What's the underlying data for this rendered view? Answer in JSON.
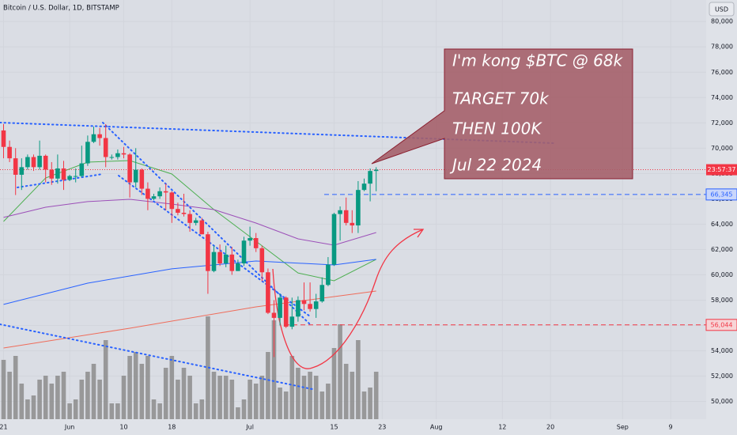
{
  "chart_data": {
    "type": "candlestick",
    "title": "Bitcoin / U.S. Dollar, 1D, BITSTAMP",
    "currency": "USD",
    "x": [
      "2024-05-21",
      "2024-05-22",
      "2024-05-23",
      "2024-05-24",
      "2024-05-25",
      "2024-05-26",
      "2024-05-27",
      "2024-05-28",
      "2024-05-29",
      "2024-05-30",
      "2024-05-31",
      "2024-06-01",
      "2024-06-02",
      "2024-06-03",
      "2024-06-04",
      "2024-06-05",
      "2024-06-06",
      "2024-06-07",
      "2024-06-08",
      "2024-06-09",
      "2024-06-10",
      "2024-06-11",
      "2024-06-12",
      "2024-06-13",
      "2024-06-14",
      "2024-06-15",
      "2024-06-16",
      "2024-06-17",
      "2024-06-18",
      "2024-06-19",
      "2024-06-20",
      "2024-06-21",
      "2024-06-22",
      "2024-06-23",
      "2024-06-24",
      "2024-06-25",
      "2024-06-26",
      "2024-06-27",
      "2024-06-28",
      "2024-06-29",
      "2024-06-30",
      "2024-07-01",
      "2024-07-02",
      "2024-07-03",
      "2024-07-04",
      "2024-07-05",
      "2024-07-06",
      "2024-07-07",
      "2024-07-08",
      "2024-07-09",
      "2024-07-10",
      "2024-07-11",
      "2024-07-12",
      "2024-07-13",
      "2024-07-14",
      "2024-07-15",
      "2024-07-16",
      "2024-07-17",
      "2024-07-18",
      "2024-07-19",
      "2024-07-20",
      "2024-07-21",
      "2024-07-22"
    ],
    "open": [
      71400,
      70100,
      69200,
      67900,
      68500,
      69300,
      68500,
      69400,
      68300,
      67600,
      68400,
      67500,
      67800,
      67800,
      68800,
      70500,
      71100,
      70800,
      69300,
      69300,
      69600,
      69500,
      67300,
      68300,
      66800,
      66000,
      66200,
      66600,
      66500,
      65200,
      64900,
      64800,
      64100,
      64300,
      63200,
      60300,
      61800,
      60900,
      61600,
      60300,
      60900,
      62700,
      62900,
      62100,
      60200,
      57000,
      56600,
      58200,
      55900,
      56700,
      58000,
      57700,
      57300,
      57900,
      59200,
      60800,
      64800,
      65100,
      64100,
      63900,
      66700,
      67200,
      68200
    ],
    "high": [
      71900,
      70600,
      70000,
      69200,
      69500,
      69500,
      70600,
      69500,
      68900,
      69500,
      69000,
      67900,
      68400,
      70200,
      71000,
      71700,
      71600,
      71900,
      69500,
      69900,
      70100,
      69600,
      70000,
      68400,
      67300,
      66400,
      66900,
      67200,
      66600,
      65700,
      66400,
      65100,
      64500,
      64500,
      63400,
      62300,
      62400,
      62300,
      62200,
      61200,
      63000,
      63800,
      63300,
      62300,
      60500,
      58000,
      58500,
      58300,
      58200,
      58300,
      59400,
      59400,
      58500,
      59800,
      61400,
      64900,
      65400,
      66100,
      65100,
      67400,
      67600,
      68400,
      68500
    ],
    "low": [
      69200,
      68900,
      66300,
      66700,
      68300,
      68200,
      68300,
      67300,
      67100,
      67200,
      66700,
      67400,
      67300,
      67700,
      68600,
      70400,
      70200,
      68500,
      69100,
      69100,
      69200,
      66100,
      66900,
      66300,
      65100,
      65900,
      66000,
      65100,
      64100,
      64700,
      64600,
      63400,
      63900,
      63200,
      58500,
      60200,
      60700,
      60600,
      60000,
      60300,
      60700,
      62300,
      61800,
      59500,
      56900,
      53500,
      56000,
      55800,
      55700,
      56300,
      57200,
      57100,
      56600,
      57800,
      59100,
      60700,
      62700,
      63900,
      63300,
      63300,
      66600,
      65800,
      66600
    ],
    "close": [
      70100,
      69200,
      67900,
      68500,
      69300,
      68500,
      69400,
      68300,
      67600,
      68400,
      67500,
      67800,
      67800,
      68800,
      70500,
      71100,
      70800,
      69300,
      69300,
      69600,
      69500,
      67300,
      68300,
      66800,
      66000,
      66200,
      66600,
      66500,
      65200,
      64900,
      64800,
      64100,
      64300,
      63200,
      60300,
      61800,
      60900,
      61600,
      60300,
      60900,
      62700,
      62900,
      62100,
      60200,
      57000,
      56600,
      58200,
      55900,
      56700,
      58000,
      57700,
      57300,
      57900,
      59200,
      60800,
      64800,
      65100,
      64100,
      63900,
      66700,
      67200,
      68200,
      68300
    ],
    "volume": [
      1875,
      1500,
      2000,
      1125,
      625,
      750,
      1250,
      1375,
      1125,
      1375,
      1500,
      500,
      625,
      1250,
      1500,
      1750,
      1250,
      2500,
      500,
      500,
      1375,
      2000,
      2125,
      1750,
      2000,
      625,
      500,
      1625,
      2000,
      1250,
      1625,
      1375,
      500,
      625,
      3250,
      1500,
      1375,
      1375,
      1250,
      375,
      625,
      1250,
      1125,
      1375,
      2125,
      3125,
      1000,
      875,
      2000,
      1625,
      1375,
      1500,
      1375,
      875,
      1125,
      2250,
      3000,
      1750,
      1500,
      2500,
      875,
      1000,
      1500
    ],
    "volume_lim": [
      0,
      4000
    ],
    "up_color": "#089981",
    "down_color": "#f23645",
    "volume_color": "#8c8c8c",
    "moving_averages": [
      {
        "color": "#4caf50",
        "x": [
          "2024-05-21",
          "2024-05-28",
          "2024-06-04",
          "2024-06-11",
          "2024-06-18",
          "2024-06-25",
          "2024-07-02",
          "2024-07-09",
          "2024-07-15",
          "2024-07-22"
        ],
        "values": [
          64213,
          67650,
          68900,
          69020,
          67960,
          65150,
          62650,
          60150,
          59530,
          61220
        ]
      },
      {
        "color": "#9c4fb8",
        "x": [
          "2024-05-21",
          "2024-05-28",
          "2024-06-04",
          "2024-06-11",
          "2024-06-18",
          "2024-06-25",
          "2024-07-02",
          "2024-07-09",
          "2024-07-15",
          "2024-07-22"
        ],
        "values": [
          64530,
          65340,
          65780,
          65960,
          65590,
          65150,
          64090,
          62840,
          62340,
          63340
        ]
      },
      {
        "color": "#2962ff",
        "x": [
          "2024-05-21",
          "2024-06-04",
          "2024-06-18",
          "2024-07-02",
          "2024-07-15",
          "2024-07-22"
        ],
        "values": [
          57660,
          59340,
          60470,
          61090,
          60780,
          61220
        ]
      },
      {
        "color": "#ef6c5a",
        "x": [
          "2024-05-21",
          "2024-06-11",
          "2024-07-02",
          "2024-07-22"
        ],
        "values": [
          54220,
          55780,
          57470,
          58720
        ]
      }
    ],
    "price_lines": [
      {
        "value": 66345,
        "label": "66,345",
        "color": "#2962ff"
      },
      {
        "value": 56044,
        "label": "56,044",
        "color": "#f23645"
      }
    ],
    "countdown": "23:57:37",
    "annotations": [
      "I'm kong $BTC @ 68k",
      "TARGET 70k",
      "THEN 100K",
      "Jul 22 2024"
    ],
    "xlim": [
      "2024-05-20",
      "2024-09-17"
    ],
    "xticks": [
      {
        "value": "2024-05-21",
        "label": "21"
      },
      {
        "value": "2024-06-01",
        "label": "Jun"
      },
      {
        "value": "2024-06-10",
        "label": "10"
      },
      {
        "value": "2024-06-18",
        "label": "18"
      },
      {
        "value": "2024-07-01",
        "label": "Jul"
      },
      {
        "value": "2024-07-15",
        "label": "15"
      },
      {
        "value": "2024-07-23",
        "label": "23"
      },
      {
        "value": "2024-08-01",
        "label": "Aug"
      },
      {
        "value": "2024-08-12",
        "label": "12"
      },
      {
        "value": "2024-08-20",
        "label": "20"
      },
      {
        "value": "2024-09-01",
        "label": "Sep"
      },
      {
        "value": "2024-09-09",
        "label": "9"
      }
    ],
    "ylim": [
      48600,
      81700
    ],
    "yticks": [
      {
        "value": 50000,
        "label": "50,000"
      },
      {
        "value": 52000,
        "label": "52,000"
      },
      {
        "value": 54000,
        "label": "54,000"
      },
      {
        "value": 56000,
        "label": "56,000"
      },
      {
        "value": 58000,
        "label": "58,000"
      },
      {
        "value": 60000,
        "label": "60,000"
      },
      {
        "value": 62000,
        "label": "62,000"
      },
      {
        "value": 64000,
        "label": "64,000"
      },
      {
        "value": 66000,
        "label": "66,000"
      },
      {
        "value": 68000,
        "label": "68,000"
      },
      {
        "value": 70000,
        "label": "70,000"
      },
      {
        "value": 72000,
        "label": "72,000"
      },
      {
        "value": 74000,
        "label": "74,000"
      },
      {
        "value": 76000,
        "label": "76,000"
      },
      {
        "value": 78000,
        "label": "78,000"
      },
      {
        "value": 80000,
        "label": "80,000"
      }
    ],
    "grid": true
  }
}
